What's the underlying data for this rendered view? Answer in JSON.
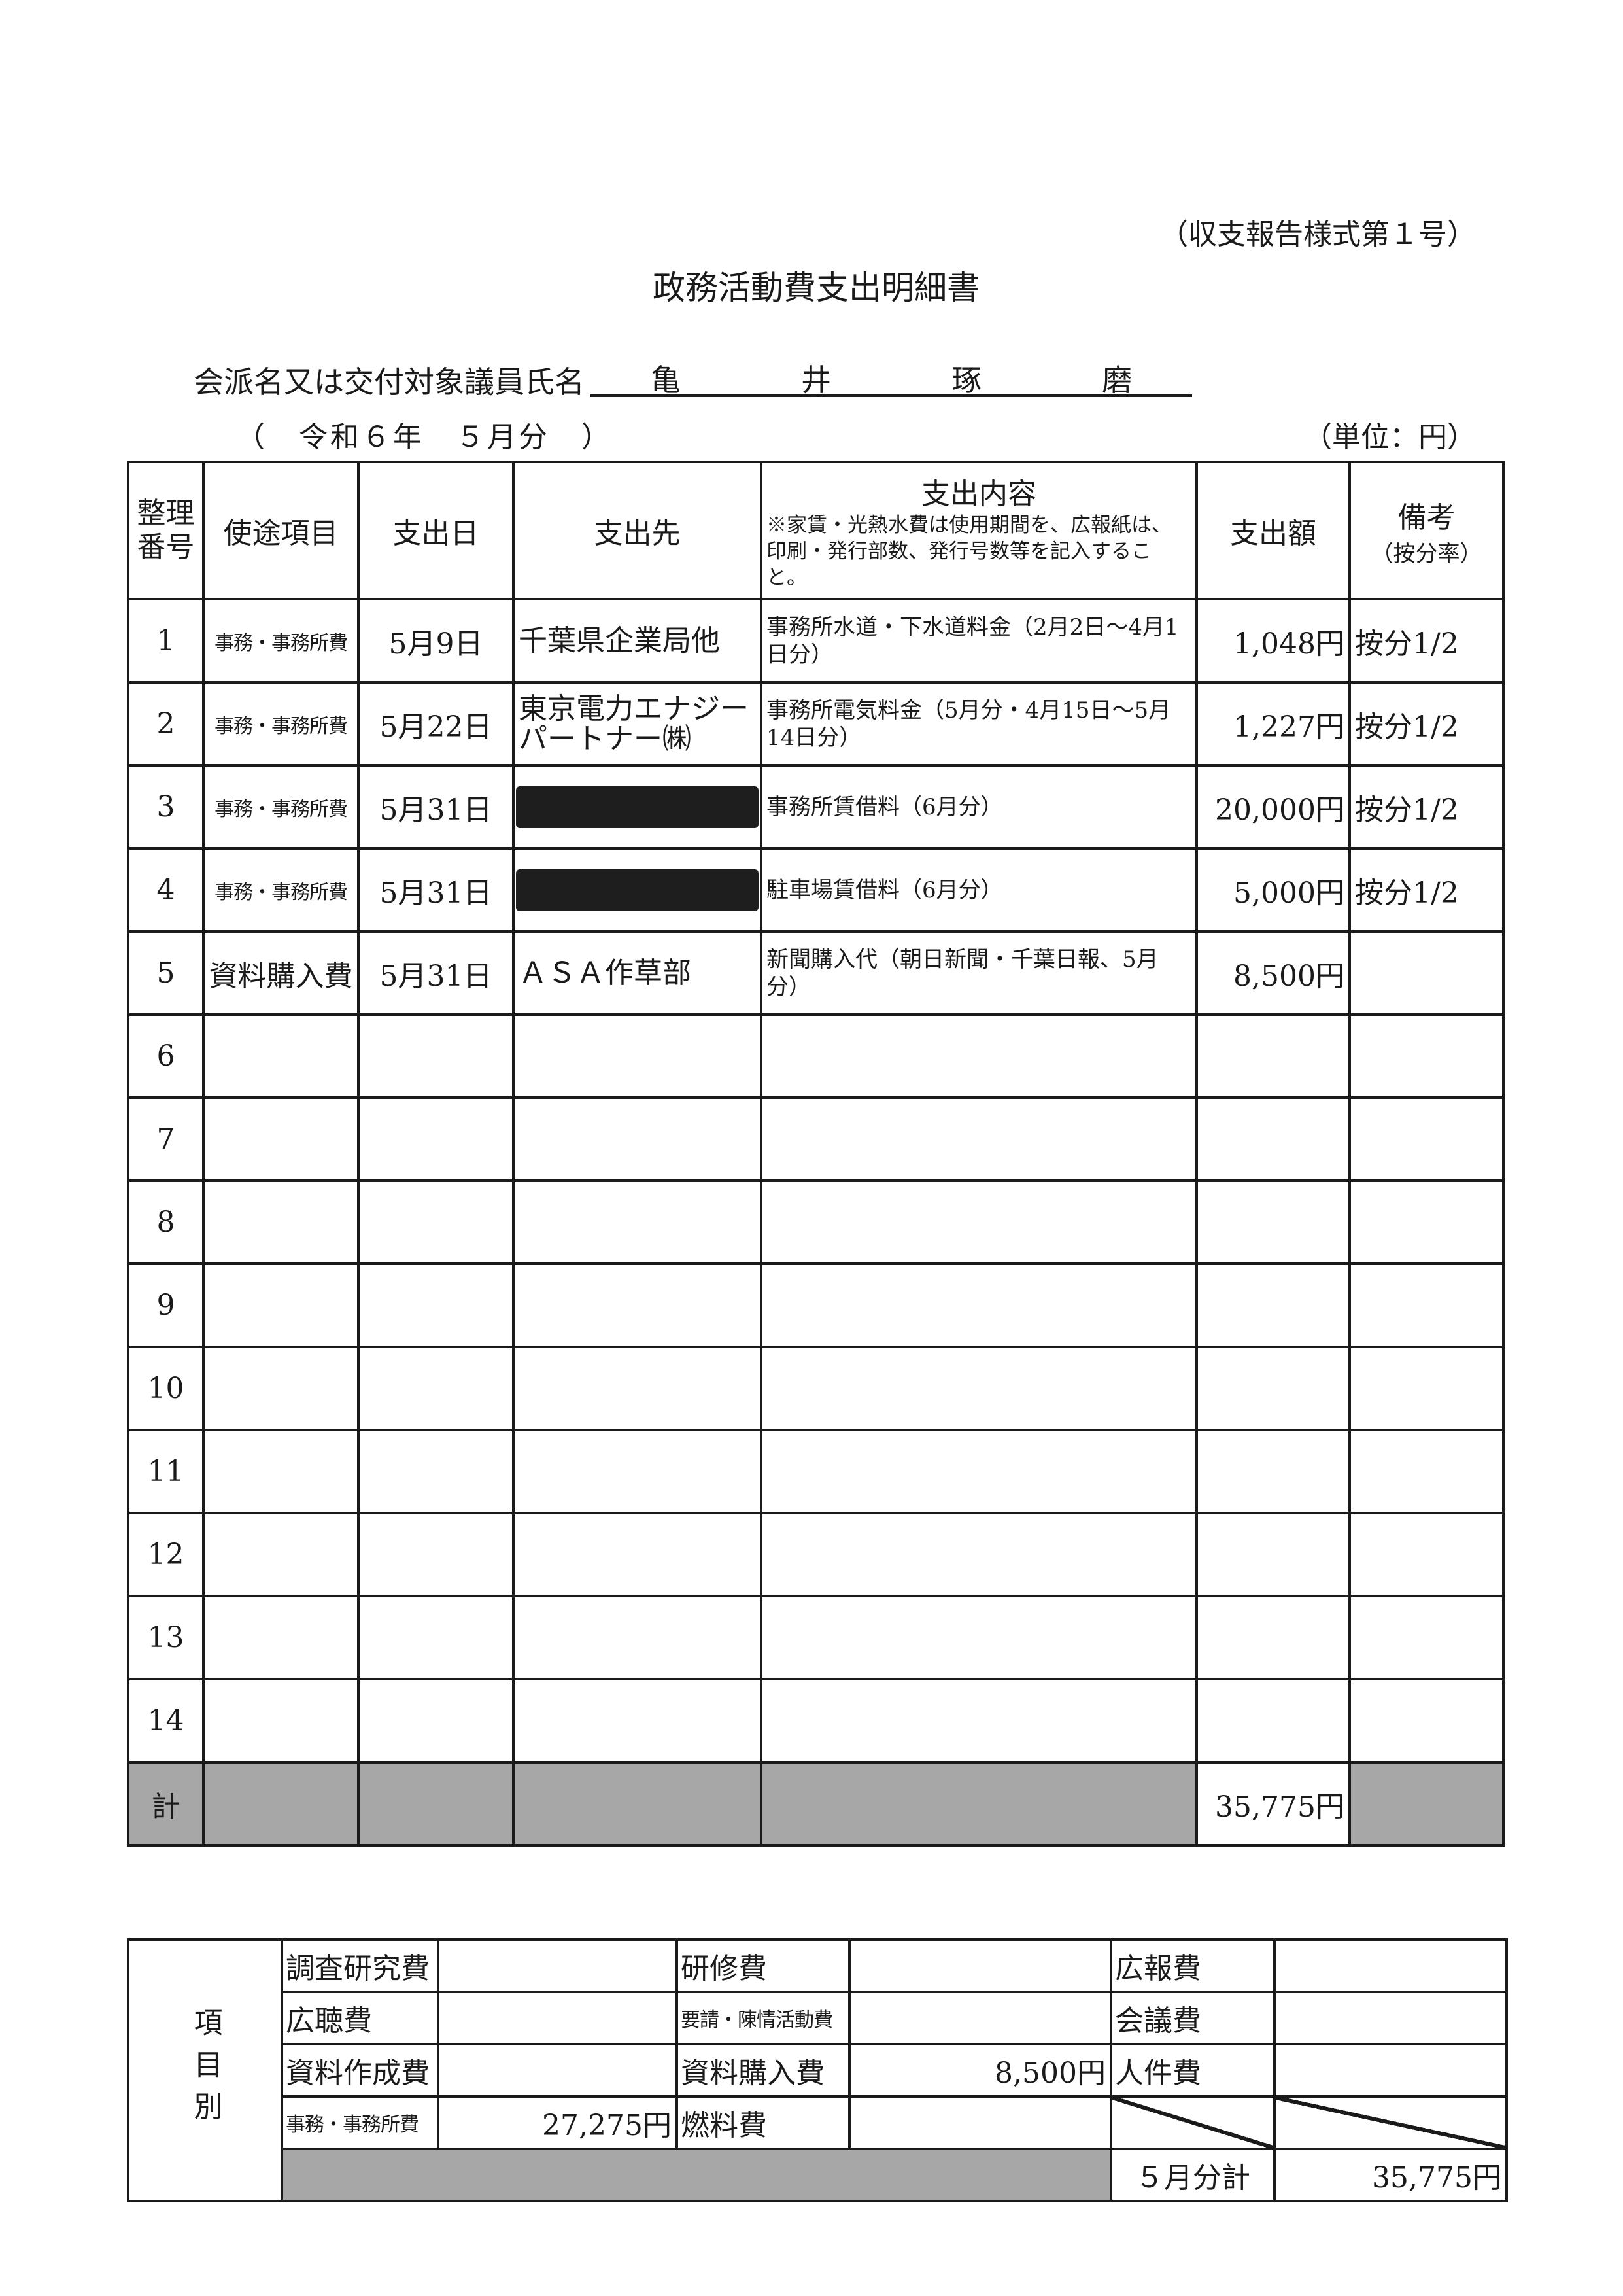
{
  "form_number": "（収支報告様式第１号）",
  "title": "政務活動費支出明細書",
  "name_label": "会派名又は交付対象議員氏名",
  "name_chars": [
    "亀",
    "井",
    "琢",
    "磨"
  ],
  "period": "（　令和６年　５月分　）",
  "unit": "（単位：円）",
  "main_table": {
    "headers": {
      "number": "整理番号",
      "category": "使途項目",
      "date": "支出日",
      "payee": "支出先",
      "content": "支出内容",
      "content_note": "※家賃・光熱水費は使用期間を、広報紙は、印刷・発行部数、発行号数等を記入すること。",
      "amount": "支出額",
      "remarks": "備考",
      "remarks_sub": "（按分率）"
    },
    "rows": [
      {
        "no": "1",
        "category": "事務・事務所費",
        "date": "5月9日",
        "payee": "千葉県企業局他",
        "redacted": false,
        "content": "事務所水道・下水道料金（2月2日～4月1日分）",
        "amount": "1,048円",
        "remarks": "按分1/2"
      },
      {
        "no": "2",
        "category": "事務・事務所費",
        "date": "5月22日",
        "payee": "東京電力エナジーパートナー㈱",
        "redacted": false,
        "content": "事務所電気料金（5月分・4月15日～5月14日分）",
        "amount": "1,227円",
        "remarks": "按分1/2"
      },
      {
        "no": "3",
        "category": "事務・事務所費",
        "date": "5月31日",
        "payee": "",
        "redacted": true,
        "content": "事務所賃借料（6月分）",
        "amount": "20,000円",
        "remarks": "按分1/2"
      },
      {
        "no": "4",
        "category": "事務・事務所費",
        "date": "5月31日",
        "payee": "",
        "redacted": true,
        "content": "駐車場賃借料（6月分）",
        "amount": "5,000円",
        "remarks": "按分1/2"
      },
      {
        "no": "5",
        "category": "資料購入費",
        "date": "5月31日",
        "payee": "ＡＳＡ作草部",
        "redacted": false,
        "content": "新聞購入代（朝日新聞・千葉日報、5月分）",
        "amount": "8,500円",
        "remarks": ""
      },
      {
        "no": "6"
      },
      {
        "no": "7"
      },
      {
        "no": "8"
      },
      {
        "no": "9"
      },
      {
        "no": "10"
      },
      {
        "no": "11"
      },
      {
        "no": "12"
      },
      {
        "no": "13"
      },
      {
        "no": "14"
      }
    ],
    "total_label": "計",
    "total_amount": "35,775円"
  },
  "summary": {
    "side_label": "項目別",
    "rows": [
      [
        {
          "label": "調査研究費",
          "value": ""
        },
        {
          "label": "研修費",
          "value": ""
        },
        {
          "label": "広報費",
          "value": ""
        }
      ],
      [
        {
          "label": "広聴費",
          "value": ""
        },
        {
          "label": "要請・陳情活動費",
          "value": "",
          "small": true
        },
        {
          "label": "会議費",
          "value": ""
        }
      ],
      [
        {
          "label": "資料作成費",
          "value": ""
        },
        {
          "label": "資料購入費",
          "value": "8,500円"
        },
        {
          "label": "人件費",
          "value": ""
        }
      ],
      [
        {
          "label": "事務・事務所費",
          "value": "27,275円",
          "small": true
        },
        {
          "label": "燃料費",
          "value": ""
        }
      ]
    ],
    "month_total_label": "５月分計",
    "month_total": "35,775円"
  }
}
